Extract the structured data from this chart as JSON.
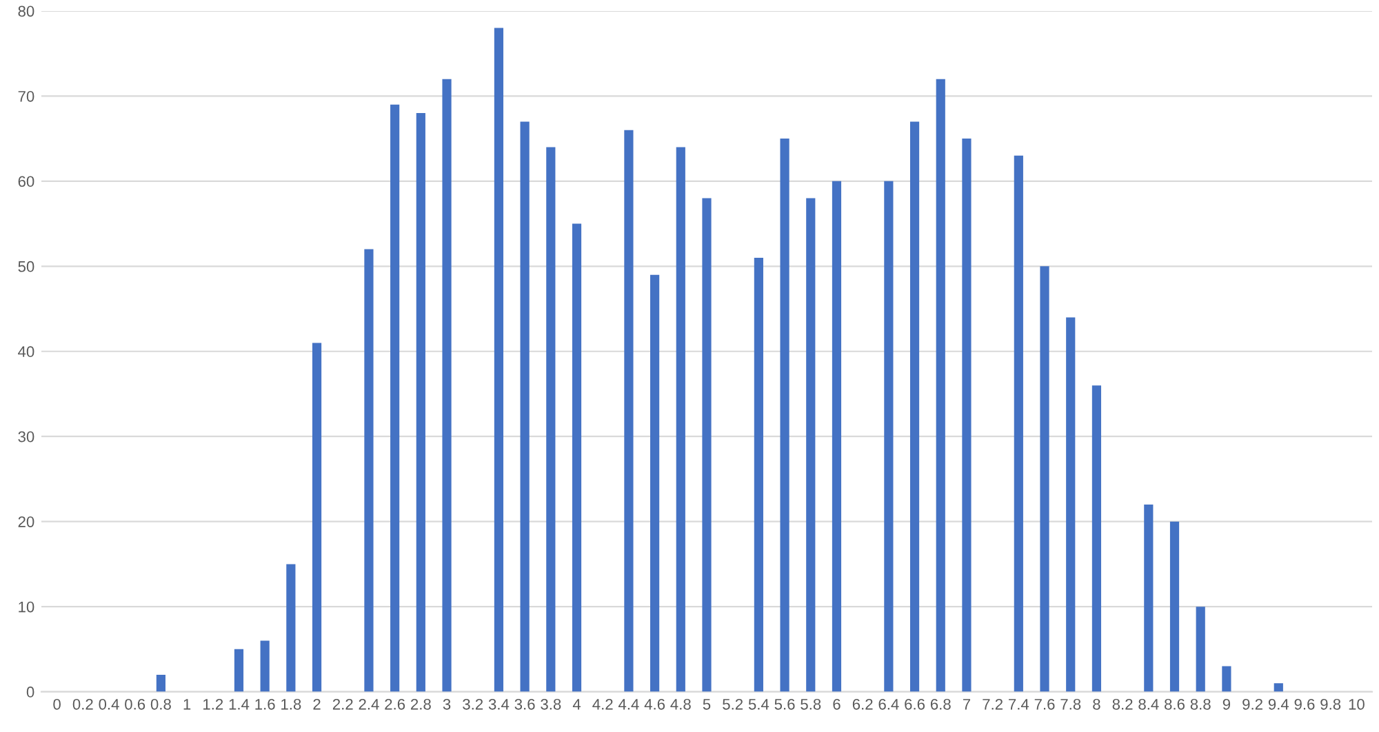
{
  "chart_data": {
    "type": "bar",
    "categories": [
      "0",
      "0.2",
      "0.4",
      "0.6",
      "0.8",
      "1",
      "1.2",
      "1.4",
      "1.6",
      "1.8",
      "2",
      "2.2",
      "2.4",
      "2.6",
      "2.8",
      "3",
      "3.2",
      "3.4",
      "3.6",
      "3.8",
      "4",
      "4.2",
      "4.4",
      "4.6",
      "4.8",
      "5",
      "5.2",
      "5.4",
      "5.6",
      "5.8",
      "6",
      "6.2",
      "6.4",
      "6.6",
      "6.8",
      "7",
      "7.2",
      "7.4",
      "7.6",
      "7.8",
      "8",
      "8.2",
      "8.4",
      "8.6",
      "8.8",
      "9",
      "9.2",
      "9.4",
      "9.6",
      "9.8",
      "10"
    ],
    "values": [
      0,
      0,
      0,
      0,
      2,
      0,
      0,
      5,
      6,
      15,
      41,
      0,
      52,
      69,
      68,
      72,
      0,
      78,
      67,
      64,
      55,
      0,
      66,
      49,
      64,
      58,
      0,
      51,
      65,
      58,
      60,
      0,
      60,
      67,
      72,
      65,
      0,
      63,
      50,
      44,
      36,
      0,
      22,
      20,
      10,
      3,
      0,
      1,
      0,
      0,
      0
    ],
    "color": "#4472c4",
    "ylim": [
      0,
      80
    ],
    "yticks": [
      0,
      10,
      20,
      30,
      40,
      50,
      60,
      70,
      80
    ],
    "grid": "y"
  }
}
